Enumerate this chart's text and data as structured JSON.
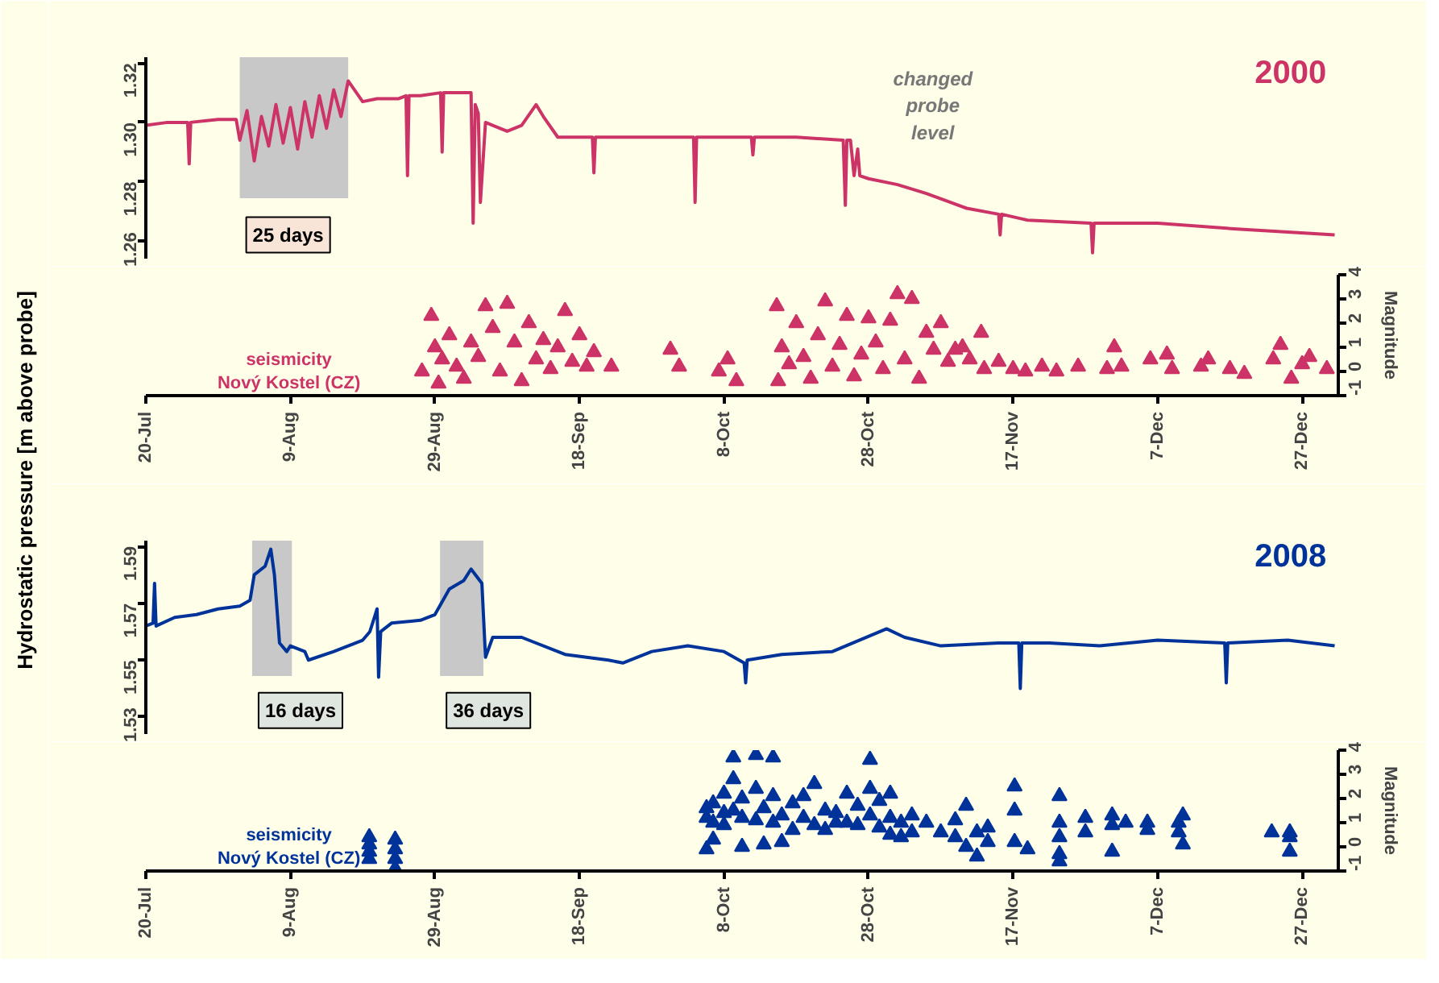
{
  "chart_data": [
    {
      "type": "line",
      "title": "2000",
      "ylabel": "Hydrostatic pressure [m above probe]",
      "xlim": [
        "2000-07-20",
        "2001-01-01"
      ],
      "ylim": [
        1.254,
        1.322
      ],
      "tick_labels": "y",
      "yticks": [
        {
          "value": 1.26,
          "label": "1.26"
        },
        {
          "value": 1.28,
          "label": "1.28"
        },
        {
          "value": 1.3,
          "label": "1.30"
        },
        {
          "value": 1.32,
          "label": "1.32"
        }
      ],
      "bands": [
        {
          "axis": "x",
          "from": "2000-08-02",
          "to": "2000-08-17",
          "color": "#c8c8c8"
        }
      ],
      "annotations": [
        "25 days",
        "changed\nprobe\nlevel"
      ],
      "series": [
        {
          "color": "#cc3366",
          "x": [
            "2000-07-20",
            "2000-07-23",
            "2000-07-25T19:00",
            "2000-07-26",
            "2000-07-26T05:00",
            "2000-07-30",
            "2000-08-01T12:00",
            "2000-08-02",
            "2000-08-03",
            "2000-08-04",
            "2000-08-05",
            "2000-08-06",
            "2000-08-07",
            "2000-08-08",
            "2000-08-09",
            "2000-08-10",
            "2000-08-11",
            "2000-08-12",
            "2000-08-13",
            "2000-08-14",
            "2000-08-15",
            "2000-08-16",
            "2000-08-17",
            "2000-08-19",
            "2000-08-21",
            "2000-08-24",
            "2000-08-25",
            "2000-08-25T05:00",
            "2000-08-25T10:00",
            "2000-08-27",
            "2000-08-29T19:00",
            "2000-08-30",
            "2000-08-30T05:00",
            "2000-09-01",
            "2000-09-03",
            "2000-09-03T07:00",
            "2000-09-03T14:00",
            "2000-09-04",
            "2000-09-04T07:00",
            "2000-09-05",
            "2000-09-06",
            "2000-09-08",
            "2000-09-10",
            "2000-09-12",
            "2000-09-13",
            "2000-09-15",
            "2000-09-18",
            "2000-09-19T19:00",
            "2000-09-20",
            "2000-09-20T05:00",
            "2000-09-28",
            "2000-10-03T19:00",
            "2000-10-04",
            "2000-10-04T05:00",
            "2000-10-11T19:00",
            "2000-10-12",
            "2000-10-12T05:00",
            "2000-10-18",
            "2000-10-24T12:00",
            "2000-10-24T19:00",
            "2000-10-25",
            "2000-10-25T12:00",
            "2000-10-26",
            "2000-10-26T12:00",
            "2000-10-26T19:00",
            "2000-10-28",
            "2000-11-01",
            "2000-11-05",
            "2000-11-10T14:00",
            "2000-11-15",
            "2000-11-15T05:00",
            "2000-11-15T10:00",
            "2000-11-19",
            "2000-11-27T19:00",
            "2000-11-28",
            "2000-11-28T05:00",
            "2000-12-07",
            "2000-12-18",
            "2000-12-25",
            "2000-12-31T12:00"
          ],
          "values": [
            1.299,
            1.3,
            1.3,
            1.286,
            1.3,
            1.301,
            1.301,
            1.294,
            1.304,
            1.287,
            1.302,
            1.292,
            1.306,
            1.293,
            1.305,
            1.291,
            1.307,
            1.295,
            1.309,
            1.298,
            1.311,
            1.302,
            1.314,
            1.307,
            1.308,
            1.308,
            1.309,
            1.282,
            1.309,
            1.309,
            1.31,
            1.29,
            1.31,
            1.31,
            1.31,
            1.266,
            1.306,
            1.303,
            1.273,
            1.3,
            1.299,
            1.297,
            1.299,
            1.306,
            1.302,
            1.295,
            1.295,
            1.295,
            1.283,
            1.295,
            1.295,
            1.295,
            1.273,
            1.295,
            1.295,
            1.289,
            1.295,
            1.295,
            1.294,
            1.272,
            1.294,
            1.294,
            1.282,
            1.291,
            1.282,
            1.281,
            1.279,
            1.276,
            1.271,
            1.269,
            1.262,
            1.269,
            1.267,
            1.266,
            1.256,
            1.266,
            1.266,
            1.264,
            1.263,
            1.262
          ]
        }
      ]
    },
    {
      "type": "scatter",
      "marker": "triangle",
      "xlim": [
        "2000-07-20",
        "2001-01-01"
      ],
      "y2lim": [
        -1,
        4
      ],
      "y2label": "Magnitude",
      "xticks": [
        {
          "value": "2000-07-20",
          "label": "20-Jul"
        },
        {
          "value": "2000-08-09",
          "label": "9-Aug"
        },
        {
          "value": "2000-08-29",
          "label": "29-Aug"
        },
        {
          "value": "2000-09-18",
          "label": "18-Sep"
        },
        {
          "value": "2000-10-08",
          "label": "8-Oct"
        },
        {
          "value": "2000-10-28",
          "label": "28-Oct"
        },
        {
          "value": "2000-11-17",
          "label": "17-Nov"
        },
        {
          "value": "2000-12-07",
          "label": "7-Dec"
        },
        {
          "value": "2000-12-27",
          "label": "27-Dec"
        }
      ],
      "y2ticks": [
        -1,
        0,
        1,
        2,
        3,
        4
      ],
      "series": [
        {
          "name": "seismicity\nNový Kostel (CZ)",
          "color": "#cc3366",
          "axis": "y2",
          "x": [
            "2000-08-27T05:00",
            "2000-08-28T12:00",
            "2000-08-29",
            "2000-08-29T12:00",
            "2000-08-30",
            "2000-08-31",
            "2000-09-01",
            "2000-09-02",
            "2000-09-03",
            "2000-09-04",
            "2000-09-05",
            "2000-09-06",
            "2000-09-07",
            "2000-09-08",
            "2000-09-09",
            "2000-09-10",
            "2000-09-11",
            "2000-09-12",
            "2000-09-13",
            "2000-09-14",
            "2000-09-15",
            "2000-09-16",
            "2000-09-17",
            "2000-09-18",
            "2000-09-19",
            "2000-09-20",
            "2000-09-22T10:00",
            "2000-09-30T14:00",
            "2000-10-01T19:00",
            "2000-10-07T07:00",
            "2000-10-08T12:00",
            "2000-10-09T17:00",
            "2000-10-15T07:00",
            "2000-10-15T12:00",
            "2000-10-16",
            "2000-10-17",
            "2000-10-18",
            "2000-10-19",
            "2000-10-20",
            "2000-10-21",
            "2000-10-22",
            "2000-10-23",
            "2000-10-24",
            "2000-10-25",
            "2000-10-26",
            "2000-10-27",
            "2000-10-28",
            "2000-10-29",
            "2000-10-30",
            "2000-10-31",
            "2000-11-01",
            "2000-11-02",
            "2000-11-03",
            "2000-11-04",
            "2000-11-05",
            "2000-11-06",
            "2000-11-07",
            "2000-11-08",
            "2000-11-09",
            "2000-11-10",
            "2000-11-11",
            "2000-11-12T14:00",
            "2000-11-13",
            "2000-11-15",
            "2000-11-17",
            "2000-11-18T17:00",
            "2000-11-21",
            "2000-11-23",
            "2000-11-26",
            "2000-11-30",
            "2000-12-01",
            "2000-12-02",
            "2000-12-06",
            "2000-12-08T07:00",
            "2000-12-09",
            "2000-12-13",
            "2000-12-14",
            "2000-12-17",
            "2000-12-19",
            "2000-12-23",
            "2000-12-24",
            "2000-12-25T12:00",
            "2000-12-27",
            "2000-12-28",
            "2000-12-30T10:00"
          ],
          "values": [
            0,
            2.3,
            1.0,
            -0.5,
            0.5,
            1.5,
            0.2,
            -0.3,
            1.2,
            0.6,
            2.7,
            1.8,
            0,
            2.8,
            1.2,
            -0.4,
            2.0,
            0.5,
            1.3,
            0.1,
            1.0,
            2.5,
            0.4,
            1.5,
            0.2,
            0.8,
            0.2,
            0.9,
            0.2,
            0,
            0.5,
            -0.4,
            2.7,
            -0.4,
            1.0,
            0.3,
            2.0,
            0.6,
            -0.3,
            1.5,
            2.9,
            0.2,
            1.1,
            2.3,
            -0.2,
            0.7,
            2.2,
            1.2,
            0.1,
            2.1,
            3.2,
            0.5,
            3.0,
            -0.3,
            1.6,
            0.9,
            2.0,
            0.4,
            0.9,
            1.0,
            0.5,
            1.6,
            0.1,
            0.4,
            0.1,
            0,
            0.2,
            0,
            0.2,
            0.1,
            1.0,
            0.2,
            0.5,
            0.7,
            0.1,
            0.2,
            0.5,
            0.1,
            -0.1,
            0.5,
            1.1,
            -0.3,
            0.3,
            0.6,
            0.1
          ]
        }
      ]
    },
    {
      "type": "line",
      "title": "2008",
      "xlim": [
        "2008-07-20",
        "2009-01-01"
      ],
      "ylim": [
        1.524,
        1.592
      ],
      "tick_labels": "y",
      "yticks": [
        {
          "value": 1.53,
          "label": "1.53"
        },
        {
          "value": 1.55,
          "label": "1.55"
        },
        {
          "value": 1.57,
          "label": "1.57"
        },
        {
          "value": 1.59,
          "label": "1.59"
        }
      ],
      "bands": [
        {
          "axis": "x",
          "from": "2008-08-03T17:00",
          "to": "2008-08-09T05:00",
          "color": "#c8c8c8"
        },
        {
          "axis": "x",
          "from": "2008-08-29T17:00",
          "to": "2008-09-04T17:00",
          "color": "#c8c8c8"
        }
      ],
      "annotations": [
        "16 days",
        "36 days"
      ],
      "series": [
        {
          "color": "#003399",
          "x": [
            "2008-07-20",
            "2008-07-21",
            "2008-07-21T05:00",
            "2008-07-21T10:00",
            "2008-07-24",
            "2008-07-27",
            "2008-07-30",
            "2008-08-02",
            "2008-08-03T10:00",
            "2008-08-04",
            "2008-08-05T12:00",
            "2008-08-06T07:00",
            "2008-08-06T19:00",
            "2008-08-07T12:00",
            "2008-08-08T12:00",
            "2008-08-09",
            "2008-08-11",
            "2008-08-11T12:00",
            "2008-08-15",
            "2008-08-19",
            "2008-08-20",
            "2008-08-21",
            "2008-08-21T05:00",
            "2008-08-21T12:00",
            "2008-08-23",
            "2008-08-27",
            "2008-08-29",
            "2008-08-31",
            "2008-09-02",
            "2008-09-03",
            "2008-09-04T12:00",
            "2008-09-05",
            "2008-09-06",
            "2008-09-10",
            "2008-09-16",
            "2008-09-22",
            "2008-09-24",
            "2008-09-28",
            "2008-10-03",
            "2008-10-08",
            "2008-10-10T19:00",
            "2008-10-11",
            "2008-10-11T05:00",
            "2008-10-16",
            "2008-10-23",
            "2008-10-30T12:00",
            "2008-11-02",
            "2008-11-07",
            "2008-11-15",
            "2008-11-17T19:00",
            "2008-11-18",
            "2008-11-18T05:00",
            "2008-11-22",
            "2008-11-29",
            "2008-12-07",
            "2008-12-16T07:00",
            "2008-12-16T12:00",
            "2008-12-16T17:00",
            "2008-12-25",
            "2008-12-31T12:00"
          ],
          "values": [
            1.562,
            1.563,
            1.577,
            1.562,
            1.565,
            1.566,
            1.568,
            1.569,
            1.571,
            1.58,
            1.583,
            1.589,
            1.58,
            1.556,
            1.553,
            1.555,
            1.553,
            1.55,
            1.553,
            1.557,
            1.56,
            1.568,
            1.544,
            1.56,
            1.563,
            1.564,
            1.566,
            1.575,
            1.578,
            1.582,
            1.577,
            1.551,
            1.558,
            1.558,
            1.552,
            1.55,
            1.549,
            1.553,
            1.555,
            1.553,
            1.549,
            1.542,
            1.55,
            1.552,
            1.553,
            1.561,
            1.558,
            1.555,
            1.556,
            1.556,
            1.54,
            1.556,
            1.556,
            1.555,
            1.557,
            1.556,
            1.542,
            1.556,
            1.557,
            1.555
          ]
        }
      ]
    },
    {
      "type": "scatter",
      "marker": "triangle",
      "xlim": [
        "2008-07-20",
        "2009-01-01"
      ],
      "y2lim": [
        -1,
        4
      ],
      "y2label": "Magnitude",
      "xticks": [
        {
          "value": "2008-07-20",
          "label": "20-Jul"
        },
        {
          "value": "2008-08-09",
          "label": "9-Aug"
        },
        {
          "value": "2008-08-29",
          "label": "29-Aug"
        },
        {
          "value": "2008-09-18",
          "label": "18-Sep"
        },
        {
          "value": "2008-10-08",
          "label": "8-Oct"
        },
        {
          "value": "2008-10-28",
          "label": "28-Oct"
        },
        {
          "value": "2008-11-17",
          "label": "17-Nov"
        },
        {
          "value": "2008-12-07",
          "label": "7-Dec"
        },
        {
          "value": "2008-12-27",
          "label": "27-Dec"
        }
      ],
      "y2ticks": [
        -1,
        0,
        1,
        2,
        3,
        4
      ],
      "series": [
        {
          "name": "seismicity\nNový Kostel (CZ)",
          "color": "#003399",
          "axis": "y2",
          "x": [
            "2008-08-19T22:00",
            "2008-08-19T22:00",
            "2008-08-19T22:00",
            "2008-08-19T22:00",
            "2008-08-23T12:00",
            "2008-08-23T12:00",
            "2008-08-23T12:00",
            "2008-08-23T12:00",
            "2008-10-05T14:00",
            "2008-10-05T14:00",
            "2008-10-05T14:00",
            "2008-10-06T12:00",
            "2008-10-06T12:00",
            "2008-10-06T12:00",
            "2008-10-08",
            "2008-10-08",
            "2008-10-08",
            "2008-10-09T07:00",
            "2008-10-09T07:00",
            "2008-10-09T07:00",
            "2008-10-10T12:00",
            "2008-10-10T12:00",
            "2008-10-10T12:00",
            "2008-10-12T10:00",
            "2008-10-12T10:00",
            "2008-10-12T10:00",
            "2008-10-13T12:00",
            "2008-10-13T12:00",
            "2008-10-14T19:00",
            "2008-10-14T19:00",
            "2008-10-14T19:00",
            "2008-10-16",
            "2008-10-16",
            "2008-10-17T12:00",
            "2008-10-17T12:00",
            "2008-10-19",
            "2008-10-19",
            "2008-10-20T12:00",
            "2008-10-20T12:00",
            "2008-10-22",
            "2008-10-22",
            "2008-10-23T12:00",
            "2008-10-23T12:00",
            "2008-10-25",
            "2008-10-25",
            "2008-10-26T12:00",
            "2008-10-26T12:00",
            "2008-10-28T05:00",
            "2008-10-28T05:00",
            "2008-10-28T05:00",
            "2008-10-29T12:00",
            "2008-10-29T12:00",
            "2008-10-31",
            "2008-10-31",
            "2008-10-31",
            "2008-11-01T12:00",
            "2008-11-01T12:00",
            "2008-11-03",
            "2008-11-03",
            "2008-11-05",
            "2008-11-07",
            "2008-11-09",
            "2008-11-09",
            "2008-11-10T12:00",
            "2008-11-10T12:00",
            "2008-11-12",
            "2008-11-12",
            "2008-11-13T12:00",
            "2008-11-13T12:00",
            "2008-11-17T05:00",
            "2008-11-17T05:00",
            "2008-11-17T05:00",
            "2008-11-19",
            "2008-11-23T10:00",
            "2008-11-23T10:00",
            "2008-11-23T10:00",
            "2008-11-23T10:00",
            "2008-11-23T10:00",
            "2008-11-27",
            "2008-11-27",
            "2008-11-30T17:00",
            "2008-11-30T17:00",
            "2008-11-30T17:00",
            "2008-12-02T14:00",
            "2008-12-05T14:00",
            "2008-12-05T14:00",
            "2008-12-09T22:00",
            "2008-12-09T22:00",
            "2008-12-10T12:00",
            "2008-12-10T12:00",
            "2008-12-22T19:00",
            "2008-12-25T07:00",
            "2008-12-25T07:00",
            "2008-12-25T07:00"
          ],
          "values": [
            -0.5,
            -0.2,
            0.1,
            0.4,
            -0.9,
            -0.5,
            -0.1,
            0.3,
            -0.1,
            1.2,
            1.6,
            0.3,
            1.0,
            1.8,
            1.4,
            2.2,
            0.9,
            3.7,
            2.8,
            1.5,
            1.2,
            2.0,
            0,
            3.8,
            2.4,
            1.1,
            1.6,
            0.1,
            3.7,
            2.1,
            1.0,
            1.3,
            0.2,
            1.8,
            0.7,
            1.2,
            2.1,
            2.6,
            0.9,
            1.5,
            0.7,
            1.0,
            1.4,
            2.2,
            1.0,
            1.7,
            0.9,
            3.6,
            2.4,
            1.3,
            1.9,
            0.8,
            2.2,
            1.2,
            0.5,
            1.0,
            0.4,
            1.3,
            0.6,
            1.0,
            0.6,
            0.4,
            1.1,
            1.7,
            0,
            -0.4,
            0.6,
            0.2,
            0.8,
            2.5,
            1.5,
            0.2,
            -0.1,
            2.1,
            1.0,
            0.4,
            -0.3,
            -0.6,
            1.2,
            0.6,
            1.3,
            0.9,
            -0.2,
            1.0,
            0.7,
            1.0,
            1.0,
            0.6,
            1.3,
            0.1,
            0.6,
            0.4,
            -0.2,
            0.6
          ]
        }
      ]
    }
  ]
}
